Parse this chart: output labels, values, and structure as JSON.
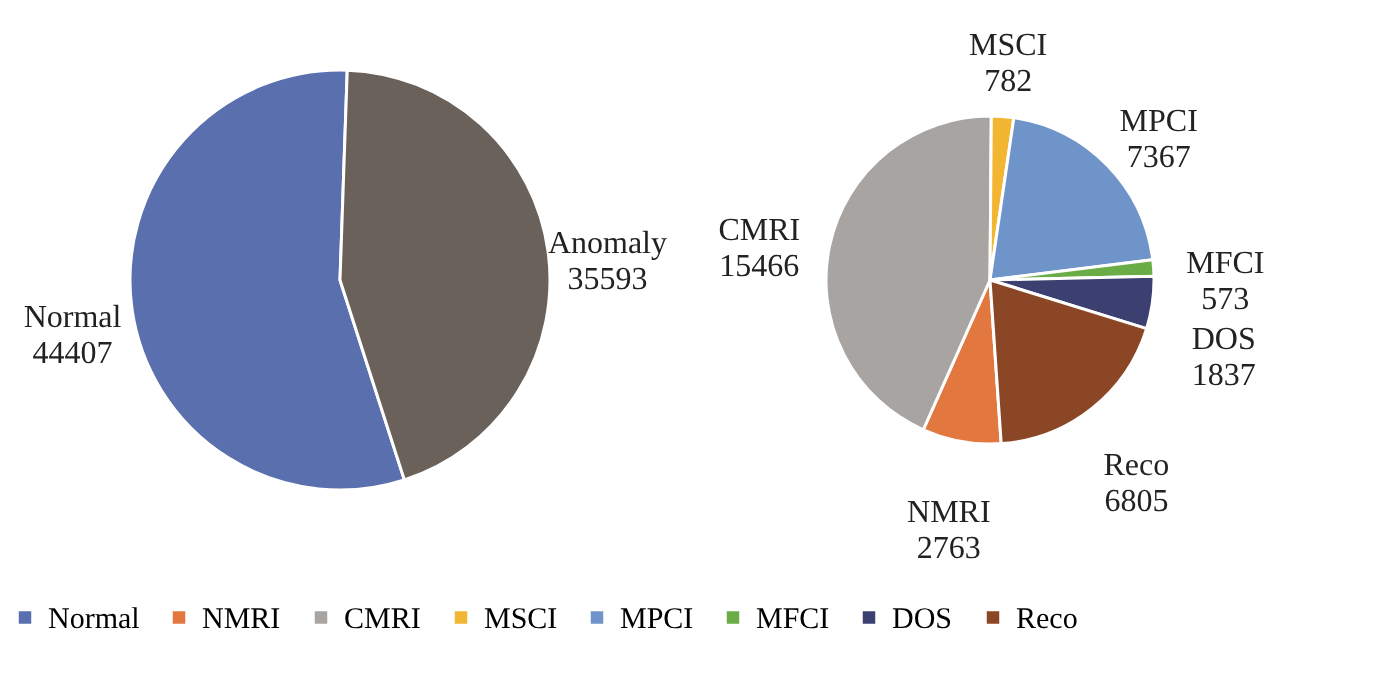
{
  "chart_data": [
    {
      "type": "pie",
      "categories": [
        "Normal",
        "Anomaly"
      ],
      "values": [
        44407,
        35593
      ],
      "colors": [
        "#5a6fae",
        "#6b615b"
      ],
      "data_labels": true,
      "legend": "bottom"
    },
    {
      "type": "pie",
      "categories": [
        "NMRI",
        "CMRI",
        "MSCI",
        "MPCI",
        "MFCI",
        "DOS",
        "Reco"
      ],
      "values": [
        2763,
        15466,
        782,
        7367,
        573,
        1837,
        6805
      ],
      "colors": [
        "#e2773f",
        "#a8a4a2",
        "#f2b632",
        "#6f94c9",
        "#6aad47",
        "#3b4070",
        "#8b4626"
      ],
      "data_labels": true,
      "legend": "bottom"
    }
  ]
}
